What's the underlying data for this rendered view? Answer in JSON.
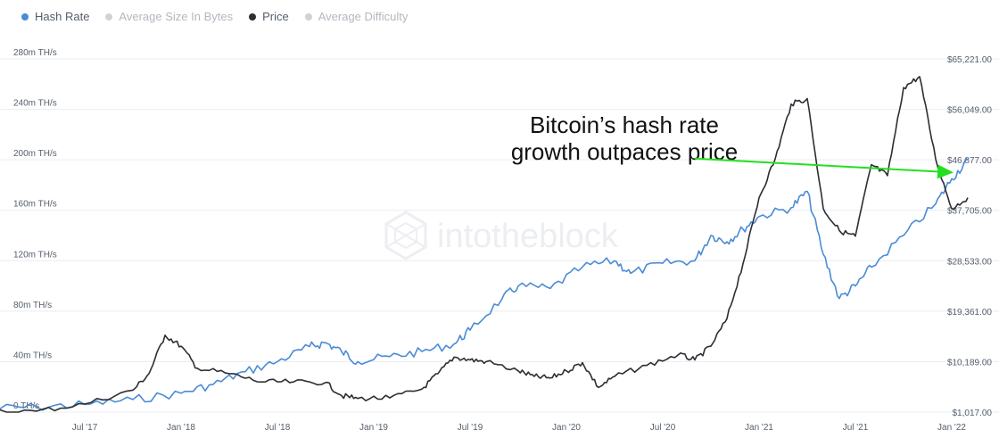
{
  "chart_data": {
    "type": "line",
    "legend": [
      {
        "name": "Hash Rate",
        "color": "#4a8bd6",
        "active": true
      },
      {
        "name": "Average Size In Bytes",
        "color": "#cfd2d6",
        "active": false
      },
      {
        "name": "Price",
        "color": "#2b2e33",
        "active": true
      },
      {
        "name": "Average Difficulty",
        "color": "#cfd2d6",
        "active": false
      }
    ],
    "x_ticks": [
      "Jul '17",
      "Jan '18",
      "Jul '18",
      "Jan '19",
      "Jul '19",
      "Jan '20",
      "Jul '20",
      "Jan '21",
      "Jul '21",
      "Jan '22"
    ],
    "y_left": {
      "ticks": [
        0,
        40,
        80,
        120,
        160,
        200,
        240,
        280
      ],
      "labels": [
        "0 TH/s",
        "40m TH/s",
        "80m TH/s",
        "120m TH/s",
        "160m TH/s",
        "200m TH/s",
        "240m TH/s",
        "280m TH/s"
      ],
      "range": [
        0,
        280
      ]
    },
    "y_right": {
      "ticks": [
        1017,
        10189,
        19361,
        28533,
        37705,
        46877,
        56049,
        65221
      ],
      "labels": [
        "$1,017.00",
        "$10,189.00",
        "$19,361.00",
        "$28,533.00",
        "$37,705.00",
        "$46,877.00",
        "$56,049.00",
        "$65,221.00"
      ],
      "range": [
        1017,
        65221
      ]
    },
    "x_range": [
      "2017-01",
      "2022-02"
    ],
    "series": [
      {
        "name": "Hash Rate",
        "axis": "left",
        "color": "#4a8bd6",
        "x": [
          "2017-01",
          "2017-04",
          "2017-07",
          "2017-10",
          "2018-01",
          "2018-03",
          "2018-05",
          "2018-07",
          "2018-09",
          "2018-10",
          "2018-11",
          "2018-12",
          "2019-02",
          "2019-04",
          "2019-06",
          "2019-07",
          "2019-09",
          "2019-10",
          "2019-12",
          "2020-02",
          "2020-04",
          "2020-05",
          "2020-07",
          "2020-09",
          "2020-10",
          "2020-11",
          "2020-12",
          "2021-01",
          "2021-03",
          "2021-04",
          "2021-05",
          "2021-06",
          "2021-07",
          "2021-08",
          "2021-10",
          "2021-12",
          "2022-01",
          "2022-02"
        ],
        "values": [
          3,
          4,
          6,
          10,
          15,
          22,
          32,
          40,
          52,
          55,
          48,
          40,
          44,
          48,
          54,
          65,
          90,
          100,
          98,
          115,
          120,
          110,
          118,
          120,
          140,
          135,
          145,
          155,
          162,
          175,
          125,
          90,
          100,
          115,
          140,
          165,
          185,
          200
        ]
      },
      {
        "name": "Price",
        "axis": "right",
        "color": "#2b2e33",
        "x": [
          "2017-01",
          "2017-04",
          "2017-07",
          "2017-10",
          "2017-11",
          "2017-12",
          "2018-01",
          "2018-02",
          "2018-04",
          "2018-06",
          "2018-08",
          "2018-10",
          "2018-11",
          "2018-12",
          "2019-02",
          "2019-04",
          "2019-05",
          "2019-06",
          "2019-07",
          "2019-08",
          "2019-10",
          "2019-11",
          "2019-12",
          "2020-01",
          "2020-02",
          "2020-03",
          "2020-04",
          "2020-06",
          "2020-08",
          "2020-09",
          "2020-10",
          "2020-11",
          "2020-12",
          "2021-01",
          "2021-02",
          "2021-03",
          "2021-04",
          "2021-05",
          "2021-06",
          "2021-07",
          "2021-08",
          "2021-09",
          "2021-10",
          "2021-11",
          "2021-12",
          "2022-01",
          "2022-02"
        ],
        "values": [
          1000,
          1200,
          2500,
          5000,
          8000,
          15000,
          13000,
          9000,
          8000,
          6500,
          6500,
          6400,
          4000,
          3500,
          3600,
          5200,
          8000,
          11000,
          10500,
          10200,
          8500,
          7500,
          7200,
          8500,
          10000,
          5500,
          7500,
          9500,
          11500,
          10500,
          13000,
          18000,
          28000,
          40000,
          47000,
          57000,
          58000,
          38000,
          34000,
          33000,
          46000,
          44000,
          60000,
          62000,
          47000,
          38000,
          40000
        ]
      }
    ],
    "annotations": [
      {
        "text_lines": [
          "Bitcoin’s hash rate",
          "growth outpaces price"
        ],
        "arrow_color": "#22e01e",
        "arrow_from": [
          "2020-09",
          201
        ],
        "arrow_to": [
          "2022-01",
          190
        ]
      }
    ],
    "watermark": "intotheblock",
    "grid": true
  }
}
